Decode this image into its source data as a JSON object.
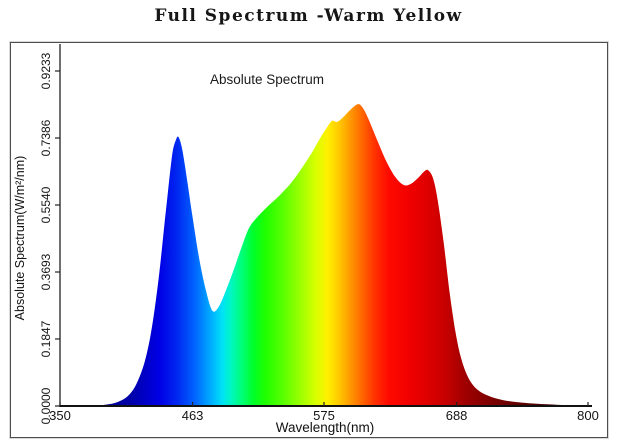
{
  "page": {
    "title": "Full Spectrum -Warm Yellow"
  },
  "chart": {
    "inner_title": "Absolute Spectrum",
    "x_axis": {
      "title": "Wavelength(nm)",
      "tick_labels": [
        "350",
        "463",
        "575",
        "688",
        "800"
      ]
    },
    "y_axis": {
      "title": "Absolute Spectrum(W/m²/nm)",
      "tick_labels": [
        "0.0000",
        "0.1847",
        "0.3693",
        "0.5540",
        "0.7386",
        "0.9233"
      ]
    },
    "colors": {
      "axis": "#222222",
      "frame": "#4d4d4d",
      "text": "#111111"
    }
  },
  "chart_data": {
    "type": "area",
    "title": "Absolute Spectrum",
    "xlabel": "Wavelength(nm)",
    "ylabel": "Absolute Spectrum(W/m²/nm)",
    "xlim": [
      350,
      800
    ],
    "ylim": [
      0,
      0.9233
    ],
    "x_ticks": [
      350,
      463,
      575,
      688,
      800
    ],
    "y_ticks": [
      0,
      0.1847,
      0.3693,
      0.554,
      0.7386,
      0.9233
    ],
    "grid": false,
    "legend": false,
    "series": [
      {
        "name": "Absolute Spectrum (W/m²/nm)",
        "peaks": [
          {
            "wavelength": 451,
            "value": 0.74
          },
          {
            "wavelength": 604,
            "value": 0.83
          },
          {
            "wavelength": 663,
            "value": 0.65
          }
        ],
        "valleys": [
          {
            "wavelength": 480,
            "value": 0.26
          },
          {
            "wavelength": 645,
            "value": 0.61
          }
        ],
        "points": [
          [
            350,
            0.0
          ],
          [
            375,
            0.001
          ],
          [
            390,
            0.004
          ],
          [
            400,
            0.012
          ],
          [
            408,
            0.028
          ],
          [
            415,
            0.06
          ],
          [
            422,
            0.12
          ],
          [
            428,
            0.21
          ],
          [
            434,
            0.35
          ],
          [
            439,
            0.5
          ],
          [
            443,
            0.62
          ],
          [
            446,
            0.7
          ],
          [
            449,
            0.735
          ],
          [
            451,
            0.741
          ],
          [
            454,
            0.71
          ],
          [
            458,
            0.63
          ],
          [
            463,
            0.52
          ],
          [
            469,
            0.4
          ],
          [
            475,
            0.31
          ],
          [
            480,
            0.262
          ],
          [
            485,
            0.272
          ],
          [
            491,
            0.315
          ],
          [
            498,
            0.375
          ],
          [
            505,
            0.44
          ],
          [
            511,
            0.49
          ],
          [
            518,
            0.52
          ],
          [
            527,
            0.55
          ],
          [
            537,
            0.58
          ],
          [
            547,
            0.615
          ],
          [
            556,
            0.655
          ],
          [
            565,
            0.7
          ],
          [
            572,
            0.74
          ],
          [
            578,
            0.77
          ],
          [
            582,
            0.786
          ],
          [
            586,
            0.783
          ],
          [
            591,
            0.795
          ],
          [
            598,
            0.818
          ],
          [
            604,
            0.832
          ],
          [
            608,
            0.822
          ],
          [
            613,
            0.79
          ],
          [
            620,
            0.735
          ],
          [
            628,
            0.675
          ],
          [
            636,
            0.63
          ],
          [
            643,
            0.609
          ],
          [
            649,
            0.612
          ],
          [
            655,
            0.628
          ],
          [
            661,
            0.648
          ],
          [
            664,
            0.649
          ],
          [
            668,
            0.627
          ],
          [
            672,
            0.565
          ],
          [
            677,
            0.45
          ],
          [
            682,
            0.315
          ],
          [
            687,
            0.205
          ],
          [
            692,
            0.13
          ],
          [
            698,
            0.078
          ],
          [
            705,
            0.047
          ],
          [
            715,
            0.028
          ],
          [
            728,
            0.016
          ],
          [
            745,
            0.009
          ],
          [
            765,
            0.005
          ],
          [
            785,
            0.002
          ],
          [
            800,
            0.001
          ]
        ]
      }
    ],
    "wavelength_color_stops": [
      [
        350,
        "#00006e"
      ],
      [
        410,
        "#0000a8"
      ],
      [
        435,
        "#0000e6"
      ],
      [
        450,
        "#0028f0"
      ],
      [
        465,
        "#0064ff"
      ],
      [
        478,
        "#00aaff"
      ],
      [
        488,
        "#00e0f8"
      ],
      [
        495,
        "#00f5c8"
      ],
      [
        505,
        "#00ff78"
      ],
      [
        515,
        "#00ff28"
      ],
      [
        525,
        "#20ff00"
      ],
      [
        540,
        "#58ff00"
      ],
      [
        555,
        "#9cff00"
      ],
      [
        568,
        "#d8ff00"
      ],
      [
        578,
        "#fff000"
      ],
      [
        588,
        "#ffc800"
      ],
      [
        598,
        "#ff9600"
      ],
      [
        608,
        "#ff6400"
      ],
      [
        618,
        "#ff3200"
      ],
      [
        630,
        "#ff0a00"
      ],
      [
        648,
        "#f00000"
      ],
      [
        665,
        "#dc0000"
      ],
      [
        680,
        "#c40000"
      ],
      [
        695,
        "#a00000"
      ],
      [
        715,
        "#800000"
      ],
      [
        740,
        "#620000"
      ],
      [
        770,
        "#4a0000"
      ],
      [
        800,
        "#3c0000"
      ]
    ]
  }
}
